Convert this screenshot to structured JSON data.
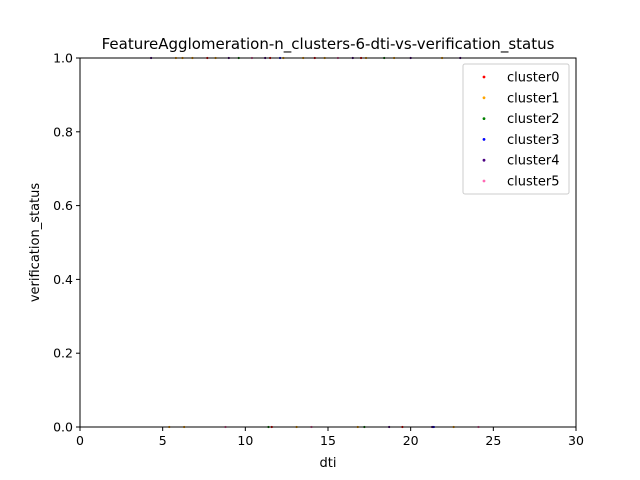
{
  "chart_data": {
    "type": "scatter",
    "title": "FeatureAgglomeration-n_clusters-6-dti-vs-verification_status",
    "xlabel": "dti",
    "ylabel": "verification_status",
    "xlim": [
      0,
      30
    ],
    "ylim": [
      0,
      1
    ],
    "x_ticks": [
      "0",
      "5",
      "10",
      "15",
      "20",
      "25",
      "30"
    ],
    "y_ticks": [
      "0.0",
      "0.2",
      "0.4",
      "0.6",
      "0.8",
      "1.0"
    ],
    "grid": false,
    "legend_position": "top-right",
    "series": [
      {
        "name": "cluster0",
        "color": "#ff0000",
        "points": [
          [
            7.7,
            1
          ],
          [
            11.5,
            1
          ],
          [
            14.2,
            1
          ],
          [
            17.0,
            1
          ],
          [
            11.6,
            0
          ],
          [
            19.5,
            0
          ]
        ]
      },
      {
        "name": "cluster1",
        "color": "#ffa500",
        "points": [
          [
            5.8,
            1
          ],
          [
            6.2,
            1
          ],
          [
            6.8,
            1
          ],
          [
            8.2,
            1
          ],
          [
            12.3,
            1
          ],
          [
            13.5,
            1
          ],
          [
            14.8,
            1
          ],
          [
            17.3,
            1
          ],
          [
            19.0,
            1
          ],
          [
            21.9,
            1
          ],
          [
            5.4,
            0
          ],
          [
            6.3,
            0
          ],
          [
            13.1,
            0
          ],
          [
            16.8,
            0
          ],
          [
            22.6,
            0
          ]
        ]
      },
      {
        "name": "cluster2",
        "color": "#008000",
        "points": [
          [
            9.6,
            1
          ],
          [
            18.4,
            1
          ],
          [
            11.4,
            0
          ],
          [
            17.2,
            0
          ]
        ]
      },
      {
        "name": "cluster3",
        "color": "#0000ff",
        "points": [
          [
            12.1,
            1
          ],
          [
            21.4,
            0
          ]
        ]
      },
      {
        "name": "cluster4",
        "color": "#4b0082",
        "points": [
          [
            4.3,
            1
          ],
          [
            9.0,
            1
          ],
          [
            11.2,
            1
          ],
          [
            16.5,
            1
          ],
          [
            20.0,
            1
          ],
          [
            23.0,
            1
          ],
          [
            18.7,
            0
          ],
          [
            21.3,
            0
          ]
        ]
      },
      {
        "name": "cluster5",
        "color": "#ff69b4",
        "points": [
          [
            10.4,
            1
          ],
          [
            15.6,
            1
          ],
          [
            8.8,
            0
          ],
          [
            14.0,
            0
          ],
          [
            24.1,
            0
          ]
        ]
      }
    ]
  }
}
